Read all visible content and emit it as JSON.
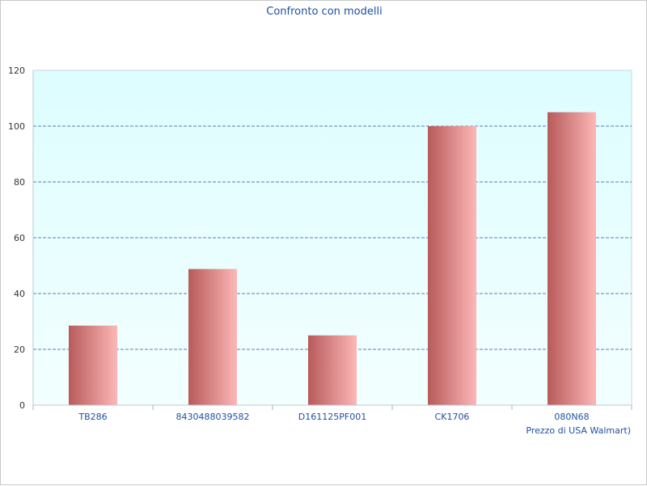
{
  "chart_data": {
    "type": "bar",
    "title": "Confronto con modelli",
    "xlabel": "Prezzo di USA Walmart)",
    "ylabel": "",
    "categories": [
      "TB286",
      "8430488039582",
      "D161125PF001",
      "CK1706",
      "080N68"
    ],
    "values": [
      28.5,
      48.8,
      25,
      100,
      105
    ],
    "ylim": [
      0,
      120
    ],
    "yticks": [
      0,
      20,
      40,
      60,
      80,
      100,
      120
    ],
    "grid": true,
    "colors": {
      "plot_bg_top": "#ddfdff",
      "plot_bg_bottom": "#f3ffff",
      "bar_dark": "#b85a5a",
      "bar_light": "#fdb7b7",
      "grid": "#2a5699",
      "text": "#1f4fa5"
    }
  }
}
